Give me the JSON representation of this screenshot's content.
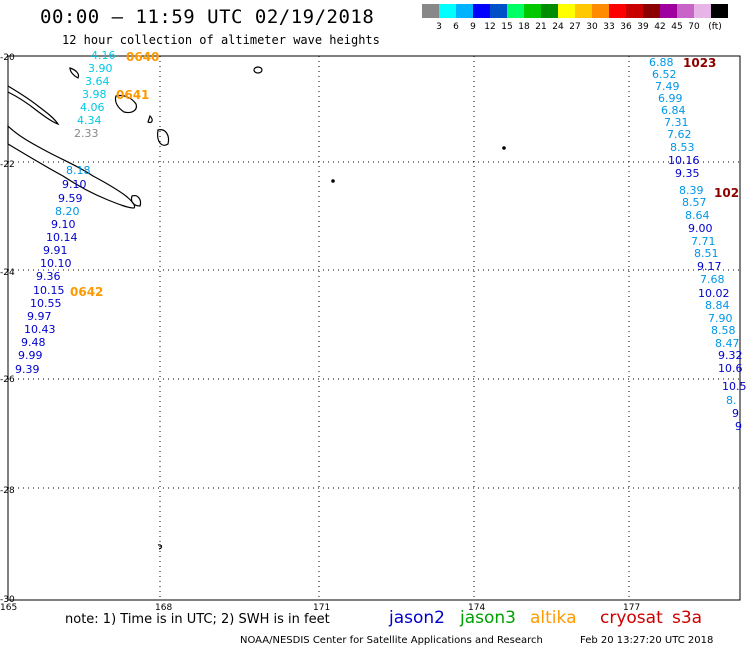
{
  "header": {
    "title": "00:00 – 11:59 UTC 02/19/2018",
    "subtitle": "12 hour collection of altimeter wave heights"
  },
  "legend": {
    "unit": "(ft)",
    "colors": [
      "#888888",
      "#00ffff",
      "#00b3ff",
      "#0000ff",
      "#0050c8",
      "#00ff64",
      "#00c800",
      "#008c00",
      "#ffff00",
      "#ffc800",
      "#ff8c00",
      "#ff0000",
      "#c80000",
      "#8c0000",
      "#a000a0",
      "#c864c8",
      "#e6b4e6",
      "#000000"
    ],
    "labels": [
      "3",
      "6",
      "9",
      "12",
      "15",
      "18",
      "21",
      "24",
      "27",
      "30",
      "33",
      "36",
      "39",
      "42",
      "45",
      "70"
    ]
  },
  "map": {
    "lat_labels": [
      "-20",
      "-22",
      "-24",
      "-26",
      "-28",
      "-30"
    ],
    "lon_labels": [
      "165",
      "168",
      "171",
      "174",
      "177"
    ]
  },
  "tracks": {
    "west": {
      "tags": [
        "0640",
        "0641",
        "0642"
      ],
      "values": [
        "4.16",
        "3.90",
        "3.64",
        "3.98",
        "4.06",
        "4.34",
        "2.33",
        "8.18",
        "9.10",
        "9.59",
        "8.20",
        "9.10",
        "10.14",
        "9.91",
        "10.10",
        "9.36",
        "10.15",
        "10.55",
        "9.97",
        "10.43",
        "9.48",
        "9.99",
        "9.39"
      ]
    },
    "east": {
      "tags": [
        "1023",
        "102"
      ],
      "values": [
        "6.88",
        "6.52",
        "7.49",
        "6.99",
        "6.84",
        "7.31",
        "7.62",
        "8.53",
        "10.16",
        "9.35",
        "8.39",
        "8.57",
        "8.64",
        "9.00",
        "7.71",
        "8.51",
        "9.17",
        "7.68",
        "10.02",
        "8.84",
        "7.90",
        "8.58",
        "8.47",
        "9.32",
        "10.6",
        "10.5",
        "8.",
        "9",
        "9"
      ]
    }
  },
  "note": "note:  1) Time is in UTC; 2) SWH is in feet",
  "satellites": [
    {
      "name": "jason2",
      "color": "#0000cc"
    },
    {
      "name": "jason3",
      "color": "#00a000"
    },
    {
      "name": "altika",
      "color": "#ff9900"
    },
    {
      "name": "cryosat",
      "color": "#cc0000"
    },
    {
      "name": "s3a",
      "color": "#cc0000"
    }
  ],
  "footer": "NOAA/NESDIS Center for Satellite Applications and Research",
  "timestamp": "Feb 20 13:27:20 UTC 2018"
}
